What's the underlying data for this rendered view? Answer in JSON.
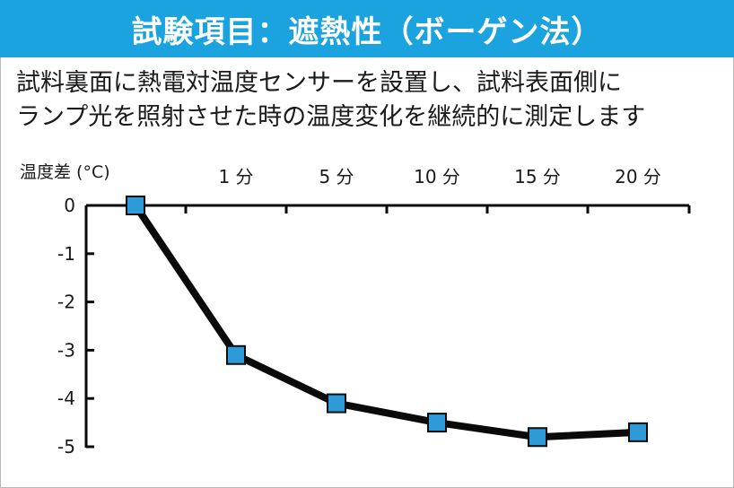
{
  "title": "試験項目：遮熱性（ボーゲン法）",
  "description": [
    "試料裏面に熱電対温度センサーを設置し、試料表面側に",
    "ランプ光を照射させた時の温度変化を継続的に測定します"
  ],
  "colors": {
    "banner": "#1aa3df",
    "line": "#0a0a0a",
    "marker": "#2e9ad8",
    "marker_border": "#0a0a0a"
  },
  "chart_data": {
    "type": "line",
    "ylabel": "温度差 (°C)",
    "x": [
      "",
      "1 分",
      "5 分",
      "10 分",
      "15 分",
      "20 分"
    ],
    "values": [
      0,
      -3.1,
      -4.1,
      -4.5,
      -4.8,
      -4.7
    ],
    "yticks": [
      "0",
      "-1",
      "-2",
      "-3",
      "-4",
      "-5"
    ],
    "ylim": [
      -5,
      0
    ],
    "x_axis_position": "top",
    "grid": false,
    "legend": "none"
  }
}
